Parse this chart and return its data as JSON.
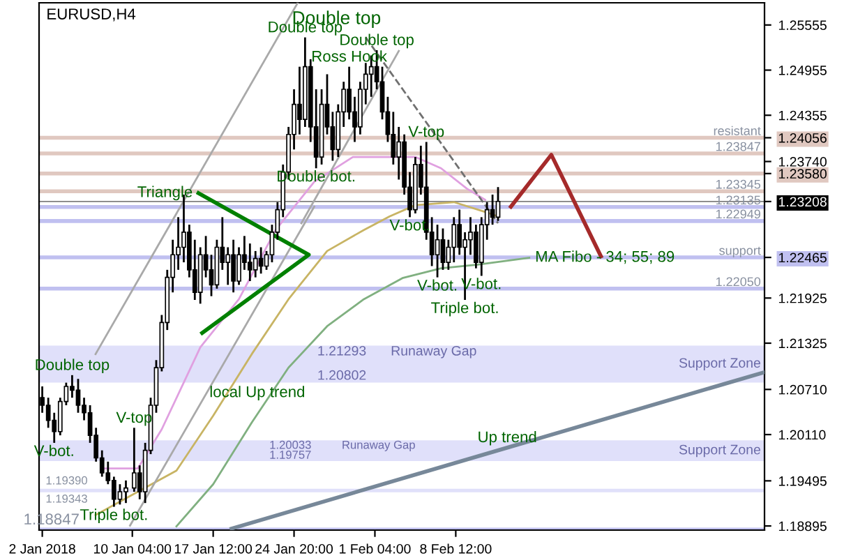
{
  "chart_data": {
    "type": "candlestick",
    "title": "EURUSD,H4",
    "x": [
      "2018-01-02T00:00",
      "2018-01-02T13:00",
      "2018-01-03T02:00",
      "2018-01-03T15:00",
      "2018-01-04T04:00",
      "2018-01-04T17:00",
      "2018-01-05T06:00",
      "2018-01-05T19:00",
      "2018-01-06T08:00",
      "2018-01-06T21:00",
      "2018-01-07T10:00",
      "2018-01-07T23:00",
      "2018-01-08T12:00",
      "2018-01-09T01:00",
      "2018-01-09T14:00",
      "2018-01-10T08:00",
      "2018-01-10T20:00",
      "2018-01-11T08:00",
      "2018-01-11T20:00",
      "2018-01-12T08:00",
      "2018-01-12T20:00",
      "2018-01-13T08:00",
      "2018-01-13T20:00",
      "2018-01-14T08:00",
      "2018-01-14T20:00",
      "2018-01-15T08:00",
      "2018-01-15T20:00",
      "2018-01-16T08:00",
      "2018-01-16T20:00",
      "2018-01-17T08:00",
      "2018-01-17T20:00",
      "2018-01-18T08:00",
      "2018-01-18T20:00",
      "2018-01-19T08:00",
      "2018-01-19T20:00",
      "2018-01-20T08:00",
      "2018-01-20T20:00",
      "2018-01-21T08:00",
      "2018-01-21T20:00",
      "2018-01-22T08:00",
      "2018-01-22T20:00",
      "2018-01-23T08:00",
      "2018-01-23T20:00",
      "2018-01-24T08:00",
      "2018-01-24T20:00",
      "2018-01-25T08:00",
      "2018-01-25T20:00",
      "2018-01-26T08:00",
      "2018-01-26T20:00",
      "2018-01-27T08:00",
      "2018-01-27T20:00",
      "2018-01-28T08:00",
      "2018-01-28T20:00",
      "2018-01-29T08:00",
      "2018-01-29T20:00",
      "2018-01-30T08:00",
      "2018-01-30T20:00",
      "2018-01-31T08:00",
      "2018-01-31T20:00",
      "2018-02-01T08:00",
      "2018-02-01T20:00",
      "2018-02-02T08:00",
      "2018-02-02T20:00",
      "2018-02-03T08:00",
      "2018-02-03T20:00",
      "2018-02-04T08:00",
      "2018-02-04T20:00",
      "2018-02-05T08:00",
      "2018-02-05T20:00",
      "2018-02-06T08:00",
      "2018-02-06T20:00",
      "2018-02-07T08:00",
      "2018-02-07T20:00",
      "2018-02-08T08:00",
      "2018-02-08T20:00",
      "2018-02-09T08:00",
      "2018-02-09T20:00",
      "2018-02-10T08:00",
      "2018-02-10T20:00",
      "2018-02-11T08:00",
      "2018-02-11T20:00",
      "2018-02-12T08:00"
    ],
    "ohlc": [
      [
        1.206,
        1.2075,
        1.204,
        1.205
      ],
      [
        1.205,
        1.206,
        1.202,
        1.203
      ],
      [
        1.203,
        1.204,
        1.2,
        1.2015
      ],
      [
        1.2015,
        1.206,
        1.201,
        1.2055
      ],
      [
        1.2055,
        1.208,
        1.205,
        1.2075
      ],
      [
        1.2075,
        1.209,
        1.206,
        1.207
      ],
      [
        1.207,
        1.2085,
        1.204,
        1.205
      ],
      [
        1.205,
        1.206,
        1.203,
        1.204
      ],
      [
        1.204,
        1.205,
        1.2,
        1.201
      ],
      [
        1.201,
        1.202,
        1.1975,
        1.198
      ],
      [
        1.198,
        1.199,
        1.1955,
        1.196
      ],
      [
        1.196,
        1.1975,
        1.1945,
        1.195
      ],
      [
        1.195,
        1.1955,
        1.1915,
        1.1925
      ],
      [
        1.1925,
        1.1945,
        1.1918,
        1.1935
      ],
      [
        1.1935,
        1.195,
        1.192,
        1.194
      ],
      [
        1.194,
        1.202,
        1.1935,
        1.196
      ],
      [
        1.196,
        1.197,
        1.1925,
        1.1935
      ],
      [
        1.1935,
        1.2,
        1.192,
        1.199
      ],
      [
        1.199,
        1.206,
        1.1985,
        1.205
      ],
      [
        1.205,
        1.211,
        1.204,
        1.21
      ],
      [
        1.21,
        1.217,
        1.2095,
        1.216
      ],
      [
        1.216,
        1.223,
        1.215,
        1.222
      ],
      [
        1.222,
        1.227,
        1.22,
        1.225
      ],
      [
        1.225,
        1.23,
        1.223,
        1.226
      ],
      [
        1.226,
        1.233,
        1.224,
        1.228
      ],
      [
        1.228,
        1.229,
        1.222,
        1.223
      ],
      [
        1.223,
        1.227,
        1.219,
        1.22
      ],
      [
        1.22,
        1.226,
        1.2185,
        1.225
      ],
      [
        1.225,
        1.2275,
        1.222,
        1.223
      ],
      [
        1.223,
        1.225,
        1.2195,
        1.221
      ],
      [
        1.221,
        1.227,
        1.2205,
        1.226
      ],
      [
        1.226,
        1.23,
        1.223,
        1.224
      ],
      [
        1.224,
        1.226,
        1.221,
        1.225
      ],
      [
        1.225,
        1.227,
        1.22,
        1.2215
      ],
      [
        1.2215,
        1.226,
        1.221,
        1.225
      ],
      [
        1.225,
        1.2275,
        1.223,
        1.224
      ],
      [
        1.224,
        1.2265,
        1.2215,
        1.223
      ],
      [
        1.223,
        1.2255,
        1.222,
        1.2245
      ],
      [
        1.2245,
        1.226,
        1.2225,
        1.2235
      ],
      [
        1.2235,
        1.2255,
        1.223,
        1.225
      ],
      [
        1.225,
        1.229,
        1.224,
        1.228
      ],
      [
        1.228,
        1.232,
        1.227,
        1.231
      ],
      [
        1.231,
        1.237,
        1.23,
        1.236
      ],
      [
        1.236,
        1.242,
        1.235,
        1.241
      ],
      [
        1.241,
        1.247,
        1.239,
        1.245
      ],
      [
        1.245,
        1.25,
        1.241,
        1.243
      ],
      [
        1.243,
        1.2539,
        1.242,
        1.25
      ],
      [
        1.25,
        1.251,
        1.24,
        1.242
      ],
      [
        1.242,
        1.247,
        1.2365,
        1.238
      ],
      [
        1.238,
        1.247,
        1.237,
        1.245
      ],
      [
        1.245,
        1.249,
        1.241,
        1.242
      ],
      [
        1.242,
        1.244,
        1.2375,
        1.239
      ],
      [
        1.239,
        1.245,
        1.238,
        1.244
      ],
      [
        1.244,
        1.248,
        1.242,
        1.247
      ],
      [
        1.247,
        1.25,
        1.243,
        1.244
      ],
      [
        1.244,
        1.246,
        1.24,
        1.242
      ],
      [
        1.242,
        1.248,
        1.241,
        1.247
      ],
      [
        1.247,
        1.2505,
        1.245,
        1.249
      ],
      [
        1.249,
        1.2515,
        1.246,
        1.25
      ],
      [
        1.25,
        1.2522,
        1.247,
        1.248
      ],
      [
        1.248,
        1.25,
        1.243,
        1.244
      ],
      [
        1.244,
        1.246,
        1.24,
        1.241
      ],
      [
        1.241,
        1.244,
        1.237,
        1.238
      ],
      [
        1.238,
        1.242,
        1.235,
        1.24
      ],
      [
        1.24,
        1.241,
        1.233,
        1.234
      ],
      [
        1.234,
        1.236,
        1.23,
        1.231
      ],
      [
        1.231,
        1.238,
        1.2305,
        1.237
      ],
      [
        1.237,
        1.2395,
        1.233,
        1.234
      ],
      [
        1.234,
        1.24,
        1.227,
        1.228
      ],
      [
        1.228,
        1.23,
        1.2235,
        1.225
      ],
      [
        1.225,
        1.229,
        1.222,
        1.227
      ],
      [
        1.227,
        1.2285,
        1.223,
        1.224
      ],
      [
        1.224,
        1.227,
        1.223,
        1.226
      ],
      [
        1.226,
        1.23,
        1.224,
        1.229
      ],
      [
        1.229,
        1.231,
        1.225,
        1.226
      ],
      [
        1.226,
        1.228,
        1.219,
        1.227
      ],
      [
        1.227,
        1.23,
        1.225,
        1.228
      ],
      [
        1.228,
        1.229,
        1.2232,
        1.224
      ],
      [
        1.224,
        1.23,
        1.2222,
        1.229
      ],
      [
        1.229,
        1.232,
        1.227,
        1.231
      ],
      [
        1.231,
        1.233,
        1.229,
        1.23
      ],
      [
        1.23,
        1.234,
        1.2295,
        1.2321
      ]
    ],
    "color": "#000000",
    "series": [
      {
        "type": "line",
        "color": "#e0a0e0",
        "x": [
          "2018-01-07T14:00",
          "2018-01-10T16:00",
          "2018-01-12T20:00",
          "2018-01-16T08:00",
          "2018-01-19T20:00",
          "2018-01-23T04:00",
          "2018-01-26T16:00",
          "2018-01-30T04:00",
          "2018-02-02T12:00",
          "2018-02-04T20:00",
          "2018-02-07T04:00",
          "2018-02-09T12:00",
          "2018-02-11T04:00"
        ],
        "values": [
          1.1966,
          1.1966,
          1.2018,
          1.2127,
          1.2191,
          1.2283,
          1.2347,
          1.238,
          1.238,
          1.238,
          1.2365,
          1.2338,
          1.2323
        ]
      },
      {
        "type": "line",
        "color": "#c8b464",
        "x": [
          "2018-01-06T20:00",
          "2018-01-10T16:00",
          "2018-01-14T04:00",
          "2018-01-17T12:00",
          "2018-01-21T00:00",
          "2018-01-24T08:00",
          "2018-01-27T20:00",
          "2018-01-31T04:00",
          "2018-02-02T12:00",
          "2018-02-04T20:00",
          "2018-02-08T08:00",
          "2018-02-11T04:00",
          "2018-02-12T08:00"
        ],
        "values": [
          1.1904,
          1.1935,
          1.1963,
          1.2036,
          1.2118,
          1.2191,
          1.2255,
          1.2283,
          1.2301,
          1.2316,
          1.232,
          1.2307,
          1.2301
        ]
      },
      {
        "type": "line",
        "color": "#80b080",
        "x": [
          "2018-01-14T04:00",
          "2018-01-17T12:00",
          "2018-01-21T00:00",
          "2018-01-24T08:00",
          "2018-01-27T20:00",
          "2018-01-31T04:00",
          "2018-02-03T16:00",
          "2018-02-07T04:00",
          "2018-02-10T12:00",
          "2018-02-15T04:00"
        ],
        "values": [
          1.1889,
          1.1945,
          1.2027,
          1.21,
          1.2155,
          1.2191,
          1.2219,
          1.2232,
          1.2237,
          1.2246
        ]
      },
      {
        "type": "line",
        "color": "#a9a9a9",
        "x": [
          "2018-01-06T20:00",
          "2018-01-25T04:00"
        ],
        "values": [
          1.2118,
          1.2585
        ]
      },
      {
        "type": "line",
        "color": "#a9a9a9",
        "x": [
          "2018-01-09T23:00",
          "2018-01-26T16:00"
        ],
        "values": [
          1.189,
          1.2314
        ]
      },
      {
        "type": "line",
        "color": "#a9a9a9",
        "x": [
          "2018-01-25T12:00",
          "2018-02-03T08:00"
        ],
        "values": [
          1.2292,
          1.2521
        ]
      },
      {
        "type": "line",
        "color": "#707070",
        "line_style": "dashed",
        "x": [
          "2018-01-31T08:00",
          "2018-02-12T08:00"
        ],
        "values": [
          1.2539,
          1.2292
        ]
      },
      {
        "type": "line",
        "color": "#008000",
        "x": [
          "2018-01-16T04:00",
          "2018-01-26T04:00",
          "2018-01-16T12:00"
        ],
        "values": [
          1.2332,
          1.225,
          1.2146
        ]
      },
      {
        "type": "line",
        "color": "#778899",
        "x": [
          "2018-01-19T04:00",
          "2018-03-08T12:00"
        ],
        "values": [
          1.1886,
          1.2094
        ]
      },
      {
        "type": "line",
        "color": "#a52a2a",
        "x": [
          "2018-02-13T12:00",
          "2018-02-17T04:00",
          "2018-02-21T16:00"
        ],
        "values": [
          1.2314,
          1.2383,
          1.2248
        ]
      }
    ],
    "xlim": [
      "2018-01-01T17:00",
      "2018-03-08T12:00"
    ],
    "xticks": [
      {
        "value": "2018-01-02",
        "label": "2 Jan 2018"
      },
      {
        "value": "2018-01-10T04:00",
        "label": "10 Jan 04:00"
      },
      {
        "value": "2018-01-17T12:00",
        "label": "17 Jan 12:00"
      },
      {
        "value": "2018-01-24T20:00",
        "label": "24 Jan 20:00"
      },
      {
        "value": "2018-02-01T04:00",
        "label": "1 Feb 04:00"
      },
      {
        "value": "2018-02-08T12:00",
        "label": "8 Feb 12:00"
      }
    ],
    "ylim": [
      1.1884,
      1.2585
    ],
    "yticks": [
      {
        "value": 1.25555,
        "label": "1.25555"
      },
      {
        "value": 1.24955,
        "label": "1.24955"
      },
      {
        "value": 1.24355,
        "label": "1.24355"
      },
      {
        "value": 1.24056,
        "label": "1.24056"
      },
      {
        "value": 1.2374,
        "label": "1.23740"
      },
      {
        "value": 1.2358,
        "label": "1.23580"
      },
      {
        "value": 1.23208,
        "label": "1.23208"
      },
      {
        "value": 1.22465,
        "label": "1.22465"
      },
      {
        "value": 1.21925,
        "label": "1.21925"
      },
      {
        "value": 1.21325,
        "label": "1.21325"
      },
      {
        "value": 1.2071,
        "label": "1.20710"
      },
      {
        "value": 1.2011,
        "label": "1.20110"
      },
      {
        "value": 1.19495,
        "label": "1.19495"
      },
      {
        "value": 1.18895,
        "label": "1.18895"
      }
    ],
    "ref_lines": [
      {
        "axis": "y",
        "value": 1.24056,
        "label": "resistant",
        "color": "#e0c8c0"
      },
      {
        "axis": "y",
        "value": 1.23847,
        "label": "1.23847",
        "color": "#e0c8c0"
      },
      {
        "axis": "y",
        "value": 1.2358,
        "color": "#e0c8c0"
      },
      {
        "axis": "y",
        "value": 1.23345,
        "label": "1.23345",
        "color": "#e0c8c0"
      },
      {
        "axis": "y",
        "value": 1.23208,
        "color": "#000000"
      },
      {
        "axis": "y",
        "value": 1.23135,
        "label": "1.23135",
        "color": "#c0c0f0"
      },
      {
        "axis": "y",
        "value": 1.22949,
        "label": "1.22949",
        "color": "#c0c0f0"
      },
      {
        "axis": "y",
        "value": 1.22465,
        "label": "support",
        "color": "#c0c0f0"
      },
      {
        "axis": "y",
        "value": 1.2205,
        "label": "1.22050",
        "color": "#c0c0f0"
      },
      {
        "axis": "y",
        "value": 1.18847,
        "color": "#c0c0f0"
      }
    ],
    "bands": [
      {
        "axis": "y",
        "from": 1.20802,
        "to": 1.21293,
        "label": "Support Zone",
        "color": "#e0e0fa"
      },
      {
        "axis": "y",
        "from": 1.19757,
        "to": 1.20033,
        "label": "Support Zone",
        "color": "#e0e0fa"
      },
      {
        "axis": "y",
        "from": 1.19343,
        "to": 1.1939,
        "color": "#e0e0fa"
      }
    ],
    "annotations": [
      "Double top",
      {
        "text": "Double top",
        "x": "2018-01-25T20:00",
        "y": 1.2539
      },
      {
        "text": "Double top",
        "x": "2018-02-01T08:00",
        "y": 1.2522
      },
      {
        "text": "Ross Hook",
        "x": "2018-01-29T20:00",
        "y": 1.25
      },
      {
        "text": "V-top",
        "x": "2018-02-05T20:00",
        "y": 1.24
      },
      {
        "text": "Double bot.",
        "x": "2018-01-26T20:00",
        "y": 1.2365
      },
      {
        "text": "V-bot.",
        "x": "2018-02-04T08:00",
        "y": 1.23
      },
      {
        "text": "Triangle",
        "x": "2018-01-16T04:00",
        "y": 1.2332
      },
      {
        "text": "V-bot.",
        "x": "2018-02-06T20:00",
        "y": 1.222
      },
      {
        "text": "V-bot.",
        "x": "2018-02-10T20:00",
        "y": 1.2222
      },
      {
        "text": "Triple bot.",
        "x": "2018-02-09T08:00",
        "y": 1.219
      },
      {
        "text": "MA Fibo - 34; 55; 89",
        "x": "2018-02-15T04:00",
        "y": 1.2246
      },
      {
        "text": "Double top",
        "x": "2018-01-04T17:00",
        "y": 1.209
      },
      {
        "text": "V-top",
        "x": "2018-01-10T08:00",
        "y": 1.202
      },
      {
        "text": "V-bot.",
        "x": "2018-01-03T02:00",
        "y": 1.2
      },
      {
        "text": "local Up trend",
        "x": "2018-01-21T12:00",
        "y": 1.2054
      },
      {
        "text": "Up trend",
        "x": "2018-02-13T04:00",
        "y": 1.1994
      },
      {
        "text": "Triple bot.",
        "x": "2018-01-08T12:00",
        "y": 1.1915
      },
      {
        "text": "1.21293",
        "x": "2018-01-29T04:00",
        "y": 1.21293
      },
      {
        "text": "Runaway Gap",
        "x": "2018-02-06T12:00",
        "y": 1.21293
      },
      {
        "text": "1.20802",
        "x": "2018-01-29T04:00",
        "y": 1.20802
      },
      {
        "text": "1.20033",
        "x": "2018-01-24T12:00",
        "y": 1.20033
      },
      {
        "text": "1.19757",
        "x": "2018-01-24T12:00",
        "y": 1.19757
      },
      {
        "text": "Runaway Gap",
        "x": "2018-02-01T12:00",
        "y": 1.20033
      },
      {
        "text": "1.19390",
        "x": "2018-01-04T05:00",
        "y": 1.1939
      },
      {
        "text": "1.19343",
        "x": "2018-01-04T05:00",
        "y": 1.19343
      },
      {
        "text": "1.18847",
        "x": "2018-01-02T20:00",
        "y": 1.18847
      }
    ],
    "grid": false,
    "legend": false
  }
}
